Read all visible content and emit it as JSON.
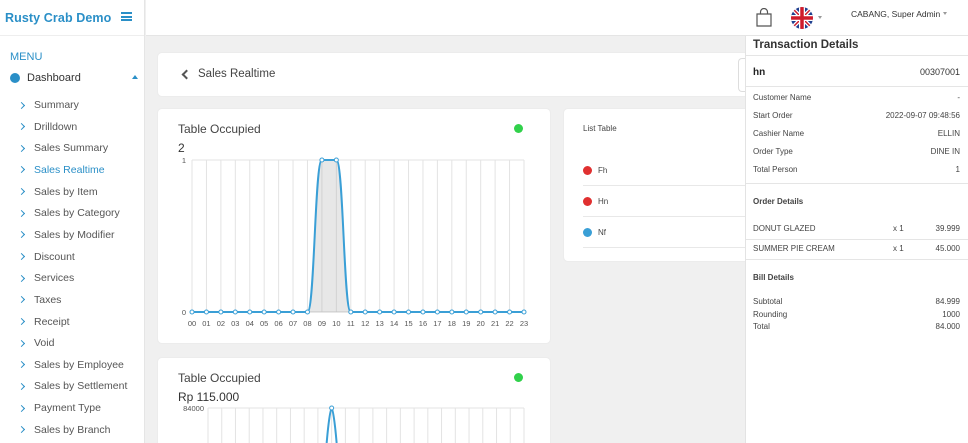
{
  "app": {
    "title": "Rusty Crab Demo"
  },
  "sidebar": {
    "menu_label": "MENU",
    "dashboard_label": "Dashboard",
    "items": [
      {
        "label": "Summary"
      },
      {
        "label": "Drilldown"
      },
      {
        "label": "Sales Summary"
      },
      {
        "label": "Sales Realtime",
        "active": true
      },
      {
        "label": "Sales by Item"
      },
      {
        "label": "Sales by Category"
      },
      {
        "label": "Sales by Modifier"
      },
      {
        "label": "Discount"
      },
      {
        "label": "Services"
      },
      {
        "label": "Taxes"
      },
      {
        "label": "Receipt"
      },
      {
        "label": "Void"
      },
      {
        "label": "Sales by Employee"
      },
      {
        "label": "Sales by Settlement"
      },
      {
        "label": "Payment Type"
      },
      {
        "label": "Sales by Branch"
      }
    ]
  },
  "topbar": {
    "user": "CABANG, Super Admin",
    "icons": [
      "shopping-bag-icon",
      "uk-flag-icon"
    ]
  },
  "page": {
    "title": "Sales Realtime"
  },
  "chart1": {
    "title": "Table Occupied",
    "value": "2",
    "status_color": "#31d14b"
  },
  "chart2": {
    "title": "Table Occupied",
    "value": "Rp 115.000",
    "status_color": "#31d14b"
  },
  "chart_data": [
    {
      "type": "line",
      "title": "Table Occupied",
      "x": [
        "00",
        "01",
        "02",
        "03",
        "04",
        "05",
        "06",
        "07",
        "08",
        "09",
        "10",
        "11",
        "12",
        "13",
        "14",
        "15",
        "16",
        "17",
        "18",
        "19",
        "20",
        "21",
        "22",
        "23"
      ],
      "series": [
        {
          "values": [
            0,
            0,
            0,
            0,
            0,
            0,
            0,
            0,
            0,
            1,
            1,
            0,
            0,
            0,
            0,
            0,
            0,
            0,
            0,
            0,
            0,
            0,
            0,
            0
          ],
          "color": "#3a9fd6"
        }
      ],
      "ylim": [
        0,
        1
      ],
      "y_ticks": [
        "0",
        "1"
      ],
      "grid": true
    },
    {
      "type": "line",
      "title": "Table Occupied",
      "y_ticks": [
        "84000"
      ],
      "series": [
        {
          "color": "#3a9fd6"
        }
      ],
      "grid": true
    }
  ],
  "list_table": {
    "title": "List Table",
    "rows": [
      {
        "label": "Fh",
        "color": "#e03030"
      },
      {
        "label": "Hn",
        "color": "#e03030"
      },
      {
        "label": "Nf",
        "color": "#3a9fd6"
      }
    ]
  },
  "transaction": {
    "title": "Transaction Details",
    "name": "hn",
    "id": "00307001",
    "fields": [
      {
        "label": "Customer Name",
        "value": "-"
      },
      {
        "label": "Start Order",
        "value": "2022-09-07 09:48:56"
      },
      {
        "label": "Cashier Name",
        "value": "ELLIN"
      },
      {
        "label": "Order Type",
        "value": "DINE IN"
      },
      {
        "label": "Total Person",
        "value": "1"
      }
    ],
    "order_title": "Order Details",
    "orders": [
      {
        "item": "DONUT GLAZED",
        "qty": "x 1",
        "price": "39.999"
      },
      {
        "item": "SUMMER PIE CREAM",
        "qty": "x 1",
        "price": "45.000"
      }
    ],
    "bill_title": "Bill Details",
    "bill": [
      {
        "label": "Subtotal",
        "value": "84.999"
      },
      {
        "label": "Rounding",
        "value": "1000"
      },
      {
        "label": "Total",
        "value": "84.000"
      }
    ]
  }
}
